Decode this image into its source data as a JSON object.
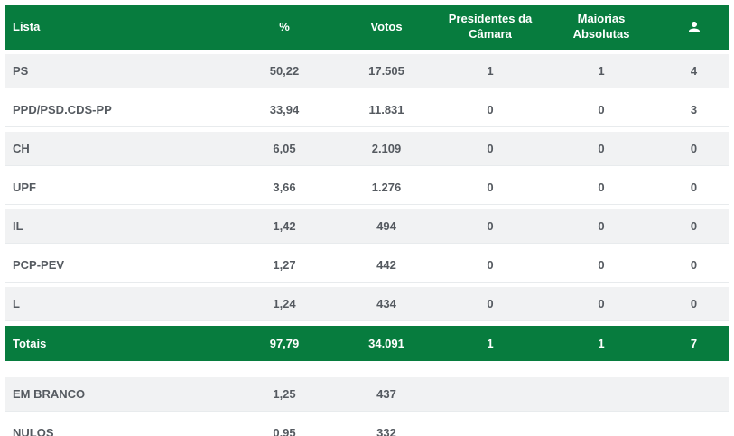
{
  "chart_data": {
    "type": "table",
    "columns": [
      {
        "label": "Lista"
      },
      {
        "label": "%"
      },
      {
        "label": "Votos"
      },
      {
        "label": "Presidentes da Câmara"
      },
      {
        "label": "Maiorias Absolutas"
      },
      {
        "label": "",
        "icon": "person-icon"
      }
    ],
    "rows": [
      {
        "lista": "PS",
        "pct": "50,22",
        "votos": "17.505",
        "presidentes": "1",
        "maiorias": "1",
        "mandatos": "4"
      },
      {
        "lista": "PPD/PSD.CDS-PP",
        "pct": "33,94",
        "votos": "11.831",
        "presidentes": "0",
        "maiorias": "0",
        "mandatos": "3"
      },
      {
        "lista": "CH",
        "pct": "6,05",
        "votos": "2.109",
        "presidentes": "0",
        "maiorias": "0",
        "mandatos": "0"
      },
      {
        "lista": "UPF",
        "pct": "3,66",
        "votos": "1.276",
        "presidentes": "0",
        "maiorias": "0",
        "mandatos": "0"
      },
      {
        "lista": "IL",
        "pct": "1,42",
        "votos": "494",
        "presidentes": "0",
        "maiorias": "0",
        "mandatos": "0"
      },
      {
        "lista": "PCP-PEV",
        "pct": "1,27",
        "votos": "442",
        "presidentes": "0",
        "maiorias": "0",
        "mandatos": "0"
      },
      {
        "lista": "L",
        "pct": "1,24",
        "votos": "434",
        "presidentes": "0",
        "maiorias": "0",
        "mandatos": "0"
      }
    ],
    "totals": {
      "lista": "Totais",
      "pct": "97,79",
      "votos": "34.091",
      "presidentes": "1",
      "maiorias": "1",
      "mandatos": "7"
    },
    "extra_rows": [
      {
        "lista": "EM BRANCO",
        "pct": "1,25",
        "votos": "437",
        "presidentes": "",
        "maiorias": "",
        "mandatos": ""
      },
      {
        "lista": "NULOS",
        "pct": "0,95",
        "votos": "332",
        "presidentes": "",
        "maiorias": "",
        "mandatos": ""
      }
    ]
  },
  "colors": {
    "header_green": "#077c3e",
    "totals_green": "#077c3e",
    "alt_row_bg": "#f1f2f3",
    "row_border": "#e8ebed",
    "text": "#555a60",
    "header_text": "#ffffff"
  }
}
